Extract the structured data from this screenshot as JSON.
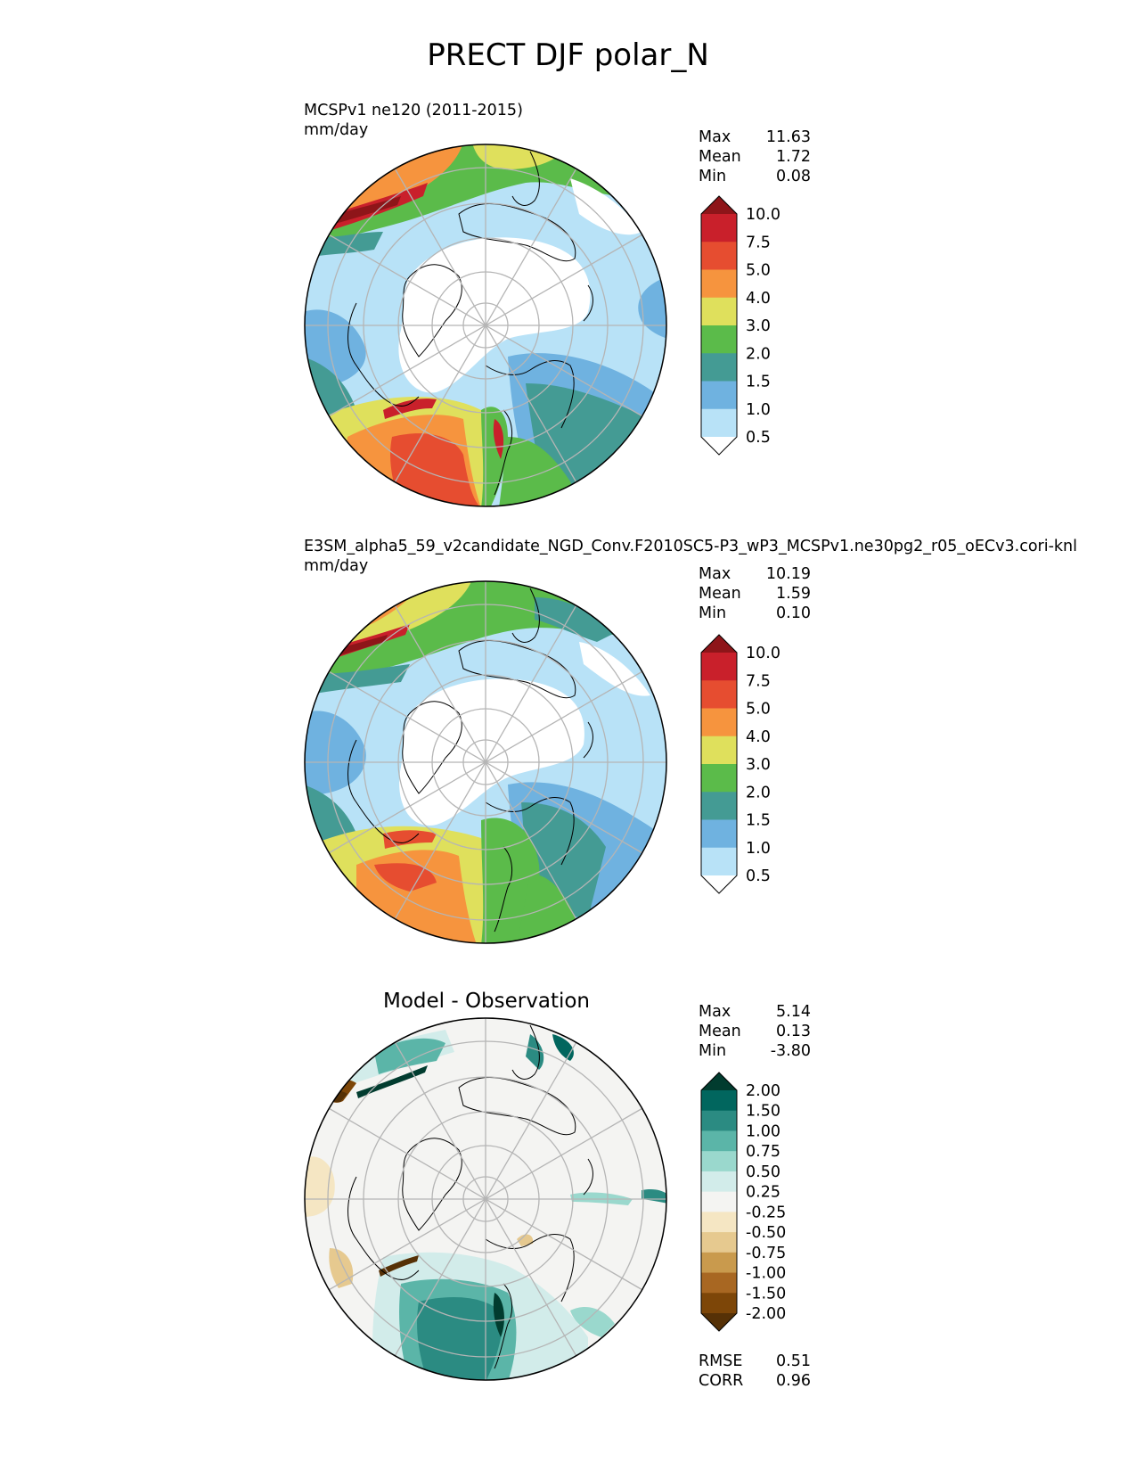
{
  "figure_title": "PRECT DJF polar_N",
  "panels": [
    {
      "label_line1": "MCSPv1 ne120 (2011-2015)",
      "label_line2": "mm/day",
      "stats": {
        "max_label": "Max",
        "max": "11.63",
        "mean_label": "Mean",
        "mean": "1.72",
        "min_label": "Min",
        "min": "0.08"
      },
      "colorbar": {
        "labels": [
          "10.0",
          "7.5",
          "5.0",
          "4.0",
          "3.0",
          "2.0",
          "1.5",
          "1.0",
          "0.5"
        ],
        "colors": [
          "#8e1519",
          "#c9202b",
          "#e64d30",
          "#f6943e",
          "#dfe05c",
          "#5bbb4a",
          "#449b94",
          "#6fb2e0",
          "#b8e2f7",
          "#ffffff"
        ]
      }
    },
    {
      "label_line1": "E3SM_alpha5_59_v2candidate_NGD_Conv.F2010SC5-P3_wP3_MCSPv1.ne30pg2_r05_oECv3.cori-knl",
      "label_line2": "mm/day",
      "stats": {
        "max_label": "Max",
        "max": "10.19",
        "mean_label": "Mean",
        "mean": "1.59",
        "min_label": "Min",
        "min": "0.10"
      },
      "colorbar": {
        "labels": [
          "10.0",
          "7.5",
          "5.0",
          "4.0",
          "3.0",
          "2.0",
          "1.5",
          "1.0",
          "0.5"
        ],
        "colors": [
          "#8e1519",
          "#c9202b",
          "#e64d30",
          "#f6943e",
          "#dfe05c",
          "#5bbb4a",
          "#449b94",
          "#6fb2e0",
          "#b8e2f7",
          "#ffffff"
        ]
      }
    },
    {
      "title": "Model - Observation",
      "stats": {
        "max_label": "Max",
        "max": "5.14",
        "mean_label": "Mean",
        "mean": "0.13",
        "min_label": "Min",
        "min": "-3.80"
      },
      "colorbar": {
        "labels": [
          "2.00",
          "1.50",
          "1.00",
          "0.75",
          "0.50",
          "0.25",
          "-0.25",
          "-0.50",
          "-0.75",
          "-1.00",
          "-1.50",
          "-2.00"
        ],
        "colors": [
          "#013c2f",
          "#01665e",
          "#2b8b82",
          "#5bb5a8",
          "#9ad8cd",
          "#d2ecea",
          "#f4f4f2",
          "#f5e6c3",
          "#e6c98f",
          "#c99a4d",
          "#a86722",
          "#7d4608",
          "#563106"
        ]
      },
      "metrics": {
        "rmse_label": "RMSE",
        "rmse": "0.51",
        "corr_label": "CORR",
        "corr": "0.96"
      }
    }
  ]
}
